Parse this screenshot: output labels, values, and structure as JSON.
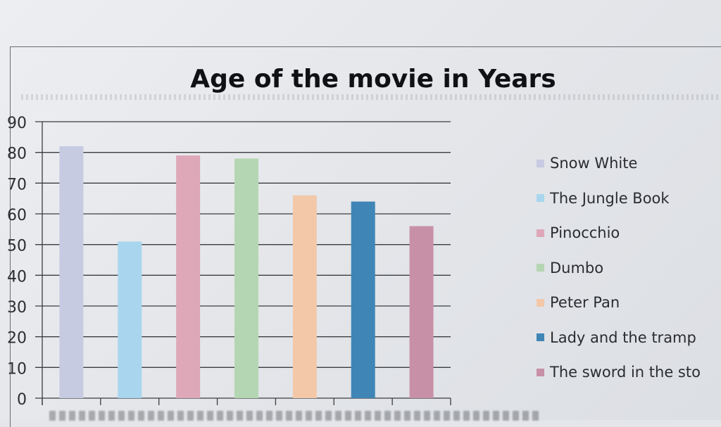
{
  "chart_data": {
    "type": "bar",
    "title": "Age of the movie in Years",
    "categories": [
      "Snow White",
      "The Jungle Book",
      "Pinocchio",
      "Dumbo",
      "Peter Pan",
      "Lady and the tramp",
      "The sword in the stone"
    ],
    "values": [
      82,
      51,
      79,
      78,
      66,
      64,
      56
    ],
    "colors": [
      "#c6cbe2",
      "#a9d6ee",
      "#dea8b9",
      "#b5d6b2",
      "#f2c8a8",
      "#3f86b6",
      "#c890a6"
    ],
    "ylim": [
      0,
      90
    ],
    "yticks": [
      0,
      10,
      20,
      30,
      40,
      50,
      60,
      70,
      80,
      90
    ],
    "grid": true,
    "legend_position": "right",
    "legend_labels": [
      "Snow White",
      "The Jungle Book",
      "Pinocchio",
      "Dumbo",
      "Peter Pan",
      "Lady and the tramp",
      "The sword in the sto"
    ]
  }
}
